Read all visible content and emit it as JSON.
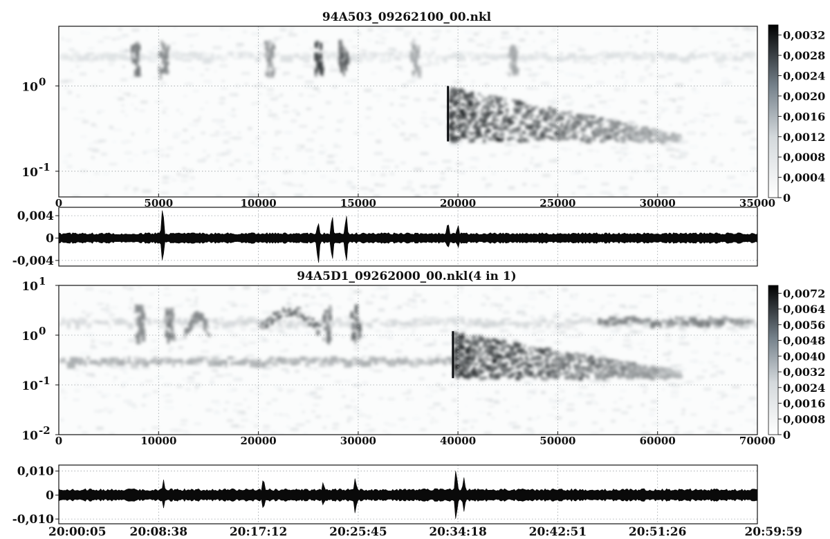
{
  "chart_data": [
    {
      "type": "heatmap",
      "title": "94A503_09262100_00.nkl",
      "xlim": [
        0,
        35000
      ],
      "x_ticks": [
        "0",
        "5000",
        "10000",
        "15000",
        "20000",
        "25000",
        "30000",
        "35000"
      ],
      "x_tick_values": [
        0,
        5000,
        10000,
        15000,
        20000,
        25000,
        30000,
        35000
      ],
      "y_scale": "log",
      "ylim": [
        0.05,
        5
      ],
      "y_ticks": [
        {
          "base": "10",
          "exp": "0",
          "value": 1
        },
        {
          "base": "10",
          "exp": "-1",
          "value": 0.1
        }
      ],
      "colorbar": {
        "range": [
          0,
          0.0034
        ],
        "ticks": [
          "0,0032",
          "0,0028",
          "0,0024",
          "0,0020",
          "0,0016",
          "0,0012",
          "0,0008",
          "0,0004",
          "0"
        ],
        "tick_values": [
          0.0032,
          0.0028,
          0.0024,
          0.002,
          0.0016,
          0.0012,
          0.0008,
          0.0004,
          0
        ],
        "colormap": "white-to-black"
      },
      "bands": [
        {
          "feature": "background band near 2",
          "x_start": 0,
          "x_end": 35000,
          "y_center": 2.0,
          "level": 0.0004
        },
        {
          "feature": "burst",
          "x": 3800,
          "y_center": 2.0,
          "level": 0.0018
        },
        {
          "feature": "burst",
          "x": 5200,
          "y_center": 2.0,
          "level": 0.0016
        },
        {
          "feature": "burst",
          "x": 10500,
          "y_center": 2.0,
          "level": 0.0015
        },
        {
          "feature": "burst",
          "x": 13000,
          "y_center": 2.0,
          "level": 0.0026
        },
        {
          "feature": "burst",
          "x": 14200,
          "y_center": 2.0,
          "level": 0.0022
        },
        {
          "feature": "burst",
          "x": 17800,
          "y_center": 2.0,
          "level": 0.0012
        },
        {
          "feature": "burst",
          "x": 22700,
          "y_center": 2.0,
          "level": 0.0012
        },
        {
          "feature": "decaying event",
          "x_start": 19500,
          "x_end": 31000,
          "y_from": 1.0,
          "y_to": 0.28,
          "level": 0.0032
        }
      ]
    },
    {
      "type": "line",
      "x_start": 0,
      "x_end": 35000,
      "ylim": [
        -0.005,
        0.0055
      ],
      "y_ticks": [
        "0,004",
        "0",
        "-0,004"
      ],
      "y_tick_values": [
        0.004,
        0,
        -0.004
      ],
      "envelope": {
        "baseline_amplitude": 0.0008,
        "spikes": [
          {
            "x": 5200,
            "max": 0.0062,
            "min": -0.0046
          },
          {
            "x": 13000,
            "max": 0.0032,
            "min": -0.0052
          },
          {
            "x": 13700,
            "max": 0.0045,
            "min": -0.004
          },
          {
            "x": 14400,
            "max": 0.0044,
            "min": -0.0048
          },
          {
            "x": 19500,
            "max": 0.0031,
            "min": -0.002
          },
          {
            "x": 20000,
            "max": 0.0026,
            "min": -0.0018
          }
        ]
      }
    },
    {
      "type": "heatmap",
      "title": "94A5D1_09262000_00.nkl(4 in 1)",
      "xlim": [
        0,
        70000
      ],
      "x_ticks": [
        "0",
        "10000",
        "20000",
        "30000",
        "40000",
        "50000",
        "60000",
        "70000"
      ],
      "x_tick_values": [
        0,
        10000,
        20000,
        30000,
        40000,
        50000,
        60000,
        70000
      ],
      "y_scale": "log",
      "ylim": [
        0.01,
        10
      ],
      "y_ticks": [
        {
          "base": "10",
          "exp": "1",
          "value": 10
        },
        {
          "base": "10",
          "exp": "0",
          "value": 1
        },
        {
          "base": "10",
          "exp": "-1",
          "value": 0.1
        },
        {
          "base": "10",
          "exp": "-2",
          "value": 0.01
        }
      ],
      "colorbar": {
        "range": [
          0,
          0.0076
        ],
        "ticks": [
          "0,0072",
          "0,0064",
          "0,0056",
          "0,0048",
          "0,0040",
          "0,0032",
          "0,0024",
          "0,0016",
          "0,0008",
          "0"
        ],
        "tick_values": [
          0.0072,
          0.0064,
          0.0056,
          0.0048,
          0.004,
          0.0032,
          0.0024,
          0.0016,
          0.0008,
          0
        ],
        "colormap": "white-to-black"
      },
      "bands": [
        {
          "feature": "background band near 1.5",
          "x_start": 0,
          "x_end": 70000,
          "y_center": 1.5,
          "level": 0.0012
        },
        {
          "feature": "band near 0.25",
          "x_start": 0,
          "x_end": 40000,
          "y_center": 0.25,
          "level": 0.0024
        },
        {
          "feature": "burst",
          "x": 8000,
          "y_center": 1.6,
          "level": 0.0035
        },
        {
          "feature": "burst",
          "x": 11000,
          "y_center": 1.5,
          "level": 0.004
        },
        {
          "feature": "arc",
          "x_start": 12500,
          "x_end": 15000,
          "y_center": 1.7,
          "level": 0.0035
        },
        {
          "feature": "arc",
          "x_start": 20000,
          "x_end": 26000,
          "y_center": 2.2,
          "level": 0.0045
        },
        {
          "feature": "burst",
          "x": 26700,
          "y_center": 1.6,
          "level": 0.004
        },
        {
          "feature": "burst",
          "x": 29600,
          "y_center": 1.6,
          "level": 0.0045
        },
        {
          "feature": "decaying event",
          "x_start": 39500,
          "x_end": 62000,
          "y_from": 1.2,
          "y_to": 0.2,
          "level": 0.007
        },
        {
          "feature": "band",
          "x_start": 54000,
          "x_end": 69000,
          "y_center": 1.6,
          "level": 0.004
        }
      ]
    },
    {
      "type": "line",
      "x_start": 0,
      "x_end": 70000,
      "ylim": [
        -0.012,
        0.0125
      ],
      "y_ticks": [
        "0,010",
        "0",
        "-0,010"
      ],
      "y_tick_values": [
        0.01,
        0,
        -0.01
      ],
      "time_ticks": [
        "20:00:05",
        "20:08:38",
        "20:17:12",
        "20:25:45",
        "20:34:18",
        "20:42:51",
        "20:51:26",
        "20:59:59"
      ],
      "envelope": {
        "baseline_amplitude": 0.0022,
        "spikes": [
          {
            "x": 10500,
            "max": 0.0065,
            "min": -0.0055
          },
          {
            "x": 20500,
            "max": 0.0075,
            "min": -0.0065
          },
          {
            "x": 26500,
            "max": 0.0055,
            "min": -0.0045
          },
          {
            "x": 29700,
            "max": 0.0078,
            "min": -0.0082
          },
          {
            "x": 39800,
            "max": 0.0118,
            "min": -0.0115
          },
          {
            "x": 40600,
            "max": 0.0085,
            "min": -0.0075
          }
        ]
      }
    }
  ]
}
